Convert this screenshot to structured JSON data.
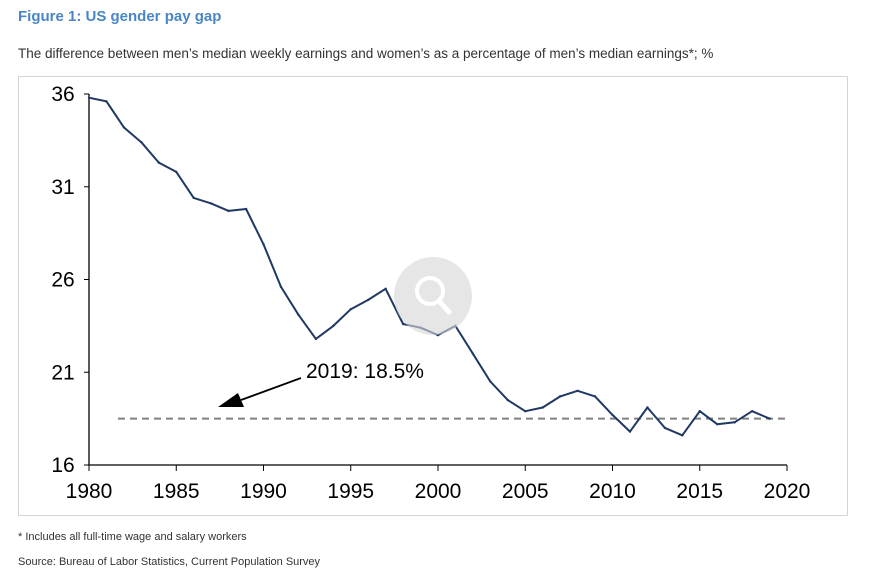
{
  "figure": {
    "title": "Figure 1: US gender pay gap",
    "subtitle": "The difference between men’s median weekly earnings and women’s as a percentage of men’s median earnings*; %",
    "footnote": "* Includes all full-time wage and salary workers",
    "source": "Source: Bureau of Labor Statistics, Current Population Survey"
  },
  "zoom_badge": {
    "icon": "magnifier-icon"
  },
  "chart_data": {
    "type": "line",
    "title": "",
    "xlabel": "",
    "ylabel": "",
    "xlim": [
      1980,
      2020
    ],
    "ylim": [
      16,
      36
    ],
    "x_ticks": [
      1980,
      1985,
      1990,
      1995,
      2000,
      2005,
      2010,
      2015,
      2020
    ],
    "y_ticks": [
      16,
      21,
      26,
      31,
      36
    ],
    "grid": false,
    "legend": "none",
    "series": [
      {
        "color": "#1f3864",
        "x": [
          1980,
          1981,
          1982,
          1983,
          1984,
          1985,
          1986,
          1987,
          1988,
          1989,
          1990,
          1991,
          1992,
          1993,
          1994,
          1995,
          1996,
          1997,
          1998,
          1999,
          2000,
          2001,
          2002,
          2003,
          2004,
          2005,
          2006,
          2007,
          2008,
          2009,
          2010,
          2011,
          2012,
          2013,
          2014,
          2015,
          2016,
          2017,
          2018,
          2019
        ],
        "y": [
          35.8,
          35.6,
          34.2,
          33.4,
          32.3,
          31.8,
          30.4,
          30.1,
          29.7,
          29.8,
          27.9,
          25.6,
          24.1,
          22.8,
          23.5,
          24.4,
          24.9,
          25.5,
          23.6,
          23.4,
          23.0,
          23.5,
          22.0,
          20.5,
          19.5,
          18.9,
          19.1,
          19.7,
          20.0,
          19.7,
          18.7,
          17.8,
          19.1,
          18.0,
          17.6,
          18.9,
          18.2,
          18.3,
          18.9,
          18.5
        ]
      }
    ],
    "reference_line": {
      "value": 18.5,
      "color": "#808080",
      "style": "dashed"
    },
    "annotation": {
      "label": "2019: 18.5%"
    },
    "colors": {
      "line": "#1f3864",
      "axis": "#000000",
      "reference": "#808080",
      "title": "#4a86c5"
    }
  }
}
